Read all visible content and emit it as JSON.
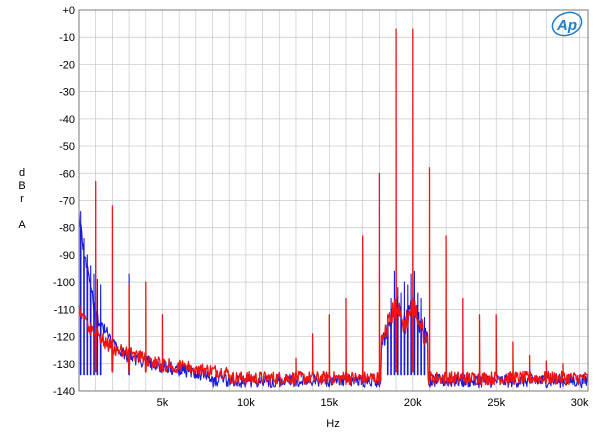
{
  "logo": {
    "text": "Ap"
  },
  "chart_data": {
    "type": "line",
    "title": "",
    "xlabel": "Hz",
    "ylabel": [
      "d",
      "B",
      "r",
      "",
      "A"
    ],
    "xlim": [
      0,
      30500
    ],
    "ylim": [
      -140,
      0
    ],
    "x_ticks": [
      {
        "v": 5000,
        "label": "5k"
      },
      {
        "v": 10000,
        "label": "10k"
      },
      {
        "v": 15000,
        "label": "15k"
      },
      {
        "v": 20000,
        "label": "20k"
      },
      {
        "v": 25000,
        "label": "25k"
      },
      {
        "v": 30000,
        "label": "30k"
      }
    ],
    "y_ticks": [
      {
        "v": 0,
        "label": "+0"
      },
      {
        "v": -10,
        "label": "-10"
      },
      {
        "v": -20,
        "label": "-20"
      },
      {
        "v": -30,
        "label": "-30"
      },
      {
        "v": -40,
        "label": "-40"
      },
      {
        "v": -50,
        "label": "-50"
      },
      {
        "v": -60,
        "label": "-60"
      },
      {
        "v": -70,
        "label": "-70"
      },
      {
        "v": -80,
        "label": "-80"
      },
      {
        "v": -90,
        "label": "-90"
      },
      {
        "v": -100,
        "label": "-100"
      },
      {
        "v": -110,
        "label": "-110"
      },
      {
        "v": -120,
        "label": "-120"
      },
      {
        "v": -130,
        "label": "-130"
      },
      {
        "v": -140,
        "label": "-140"
      }
    ],
    "grid": true,
    "series": [
      {
        "color": "#1a1ad8",
        "floor": -136,
        "low_freq_rise": [
          [
            0,
            -75
          ],
          [
            300,
            -88
          ],
          [
            1000,
            -112
          ],
          [
            2500,
            -126
          ],
          [
            5000,
            -131
          ],
          [
            8000,
            -134
          ]
        ],
        "peaks": [
          {
            "x": 100,
            "y": -74
          },
          {
            "x": 300,
            "y": -84
          },
          {
            "x": 500,
            "y": -90
          },
          {
            "x": 700,
            "y": -94
          },
          {
            "x": 900,
            "y": -97
          },
          {
            "x": 1100,
            "y": -99
          },
          {
            "x": 1300,
            "y": -101
          },
          {
            "x": 3000,
            "y": -97
          },
          {
            "x": 18500,
            "y": -112
          },
          {
            "x": 18700,
            "y": -106
          },
          {
            "x": 18900,
            "y": -96
          },
          {
            "x": 19100,
            "y": -102
          },
          {
            "x": 19300,
            "y": -104
          },
          {
            "x": 19500,
            "y": -100
          },
          {
            "x": 19700,
            "y": -101
          },
          {
            "x": 19900,
            "y": -97
          },
          {
            "x": 20100,
            "y": -96
          },
          {
            "x": 20300,
            "y": -104
          },
          {
            "x": 20500,
            "y": -106
          },
          {
            "x": 20700,
            "y": -113
          }
        ]
      },
      {
        "color": "#ee1414",
        "floor": -135,
        "low_freq_rise": [
          [
            0,
            -110
          ],
          [
            500,
            -116
          ],
          [
            2000,
            -124
          ],
          [
            5000,
            -130
          ],
          [
            9000,
            -133
          ]
        ],
        "peaks": [
          {
            "x": 1000,
            "y": -63
          },
          {
            "x": 2000,
            "y": -72
          },
          {
            "x": 3000,
            "y": -101
          },
          {
            "x": 4000,
            "y": -100
          },
          {
            "x": 5000,
            "y": -112
          },
          {
            "x": 13000,
            "y": -128
          },
          {
            "x": 14000,
            "y": -119
          },
          {
            "x": 15000,
            "y": -112
          },
          {
            "x": 16000,
            "y": -106
          },
          {
            "x": 17000,
            "y": -83
          },
          {
            "x": 18000,
            "y": -60
          },
          {
            "x": 19000,
            "y": -7
          },
          {
            "x": 20000,
            "y": -7
          },
          {
            "x": 21000,
            "y": -58
          },
          {
            "x": 22000,
            "y": -83
          },
          {
            "x": 23000,
            "y": -106
          },
          {
            "x": 24000,
            "y": -112
          },
          {
            "x": 25000,
            "y": -112
          },
          {
            "x": 26000,
            "y": -122
          },
          {
            "x": 27000,
            "y": -127
          },
          {
            "x": 28000,
            "y": -129
          },
          {
            "x": 29000,
            "y": -130
          }
        ]
      }
    ]
  }
}
